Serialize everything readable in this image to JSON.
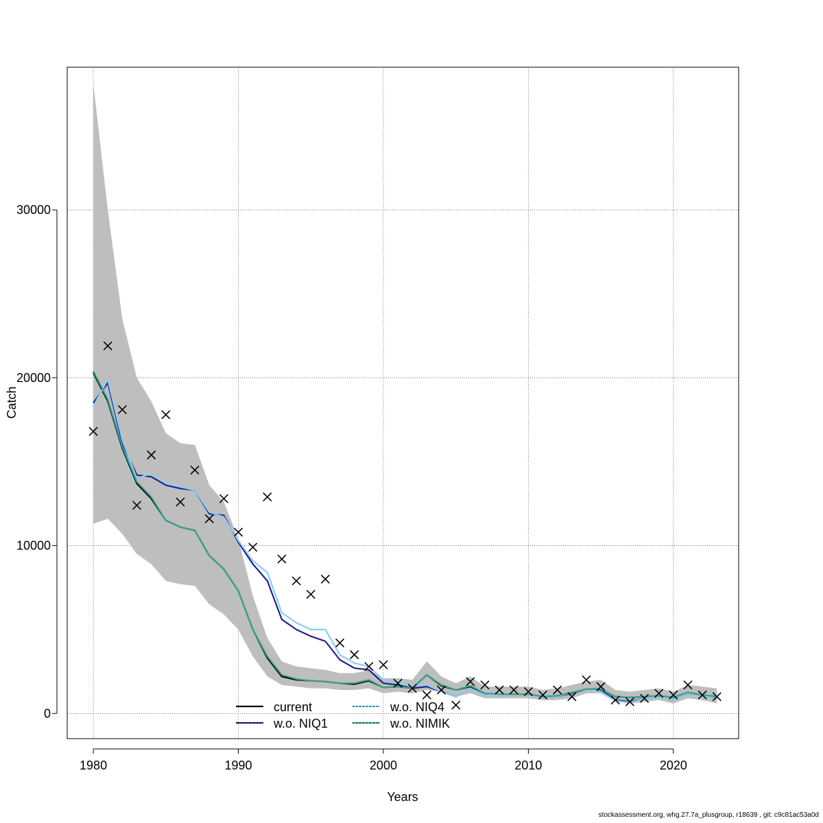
{
  "chart_data": {
    "type": "line",
    "xlabel": "Years",
    "ylabel": "Catch",
    "xlim": [
      1978.2,
      2024.5
    ],
    "ylim": [
      -1500,
      38500
    ],
    "x_ticks": [
      1980,
      1990,
      2000,
      2010,
      2020
    ],
    "y_ticks": [
      0,
      10000,
      20000,
      30000
    ],
    "x_tick_labels": [
      "1980",
      "1990",
      "2000",
      "2010",
      "2020"
    ],
    "y_tick_labels": [
      "0",
      "10000",
      "20000",
      "30000"
    ],
    "grid": true,
    "legend_position": "bottom-center",
    "years": [
      1980,
      1981,
      1982,
      1983,
      1984,
      1985,
      1986,
      1987,
      1988,
      1989,
      1990,
      1991,
      1992,
      1993,
      1994,
      1995,
      1996,
      1997,
      1998,
      1999,
      2000,
      2001,
      2002,
      2003,
      2004,
      2005,
      2006,
      2007,
      2008,
      2009,
      2010,
      2011,
      2012,
      2013,
      2014,
      2015,
      2016,
      2017,
      2018,
      2019,
      2020,
      2021,
      2022,
      2023
    ],
    "band": {
      "color": "#bebebe",
      "lower": [
        11300,
        11600,
        10700,
        9500,
        8900,
        7900,
        7700,
        7600,
        6500,
        5900,
        5000,
        3400,
        2200,
        1700,
        1600,
        1500,
        1500,
        1400,
        1400,
        1500,
        1200,
        1300,
        1200,
        1400,
        1300,
        1000,
        1200,
        900,
        900,
        900,
        900,
        800,
        800,
        900,
        1200,
        1200,
        700,
        600,
        700,
        800,
        600,
        900,
        800,
        600
      ],
      "upper": [
        37500,
        30000,
        23500,
        20000,
        18600,
        16700,
        16100,
        16000,
        13600,
        12600,
        10400,
        7000,
        4500,
        3100,
        2800,
        2700,
        2600,
        2400,
        2400,
        2600,
        2100,
        2100,
        2000,
        3100,
        2200,
        1800,
        2200,
        1600,
        1600,
        1600,
        1600,
        1400,
        1500,
        1700,
        1900,
        2000,
        1400,
        1300,
        1400,
        1500,
        1300,
        1700,
        1600,
        1500
      ]
    },
    "series": [
      {
        "name": "current",
        "color": "#000000",
        "dashed": false,
        "values": [
          20300,
          18600,
          15800,
          13700,
          12800,
          11500,
          11100,
          10900,
          9400,
          8600,
          7300,
          5000,
          3300,
          2200,
          2000,
          1950,
          1900,
          1800,
          1750,
          1950,
          1550,
          1600,
          1500,
          2300,
          1650,
          1400,
          1600,
          1150,
          1150,
          1150,
          1150,
          1000,
          1050,
          1250,
          1450,
          1450,
          1000,
          950,
          1000,
          1050,
          950,
          1250,
          1100,
          1000
        ]
      },
      {
        "name": "w.o. NIQ1",
        "color": "#2a1f7a",
        "dashed": false,
        "values": [
          18500,
          19700,
          16100,
          14200,
          14100,
          13600,
          13400,
          13300,
          11900,
          11800,
          10200,
          8900,
          7900,
          5600,
          5000,
          4600,
          4300,
          3200,
          2700,
          2600,
          1800,
          1700,
          1500,
          1600,
          1300,
          1000,
          1500,
          1100,
          1100,
          1150,
          1150,
          950,
          1000,
          1200,
          1450,
          1400,
          800,
          700,
          900,
          1000,
          850,
          1200,
          1050,
          900
        ]
      },
      {
        "name": "w.o. NIQ4",
        "color": "#87cefa",
        "dashed": false,
        "values": [
          18300,
          19900,
          16300,
          14000,
          14300,
          13700,
          13500,
          13300,
          12000,
          11700,
          10300,
          9100,
          8400,
          6000,
          5400,
          5000,
          5000,
          3500,
          3000,
          2800,
          2000,
          1800,
          1700,
          1700,
          1300,
          1000,
          1500,
          1100,
          1100,
          1150,
          1150,
          950,
          1000,
          1250,
          1450,
          1300,
          750,
          650,
          900,
          1000,
          850,
          1200,
          1050,
          900
        ]
      },
      {
        "name": "w.o. NIMIK",
        "color": "#3aa48e",
        "dashed": false,
        "values": [
          20400,
          18700,
          15900,
          13800,
          12900,
          11500,
          11100,
          10900,
          9400,
          8600,
          7300,
          5000,
          3400,
          2300,
          2050,
          1950,
          1900,
          1800,
          1800,
          2000,
          1550,
          1600,
          1500,
          2300,
          1700,
          1400,
          1650,
          1200,
          1150,
          1150,
          1150,
          1000,
          1050,
          1250,
          1450,
          1450,
          1000,
          950,
          1000,
          1050,
          950,
          1250,
          1100,
          1000
        ]
      }
    ],
    "observed": {
      "marker": "x",
      "color": "#000000",
      "values": [
        16800,
        21900,
        18100,
        12400,
        15400,
        17800,
        12600,
        14500,
        11600,
        12800,
        10800,
        9900,
        12900,
        9200,
        7900,
        7100,
        8000,
        4200,
        3500,
        2800,
        2900,
        1800,
        1500,
        1100,
        1400,
        500,
        1900,
        1700,
        1400,
        1400,
        1300,
        1100,
        1400,
        1000,
        2000,
        1600,
        800,
        700,
        900,
        1200,
        1100,
        1700,
        1100,
        1000
      ]
    }
  },
  "footer_text": "stockassessment.org, whg.27.7a_plusgroup, r18639 , git: c9c81ac53a0d"
}
